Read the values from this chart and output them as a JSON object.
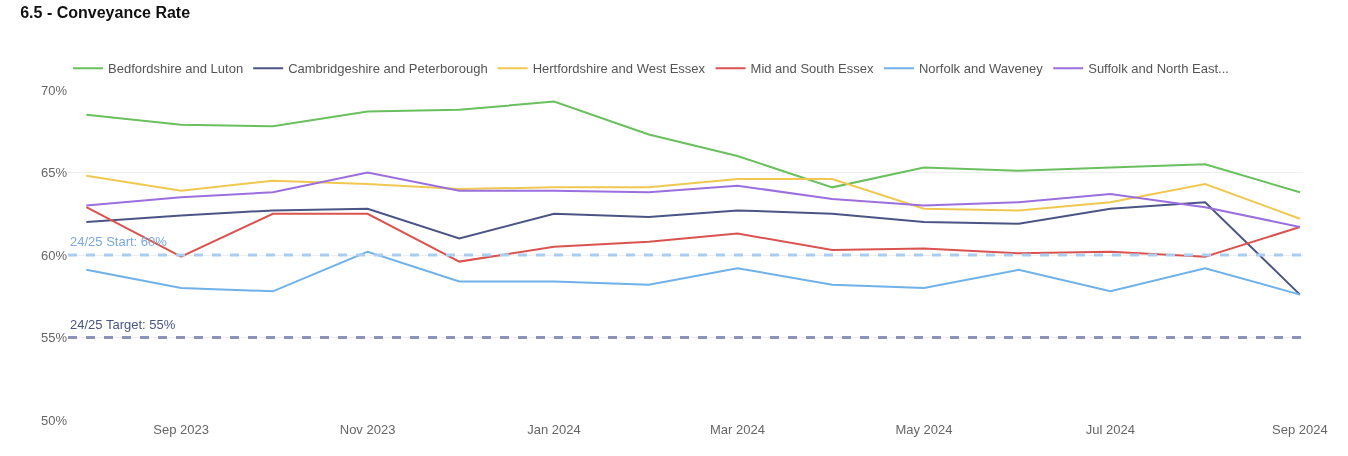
{
  "chart_data": {
    "type": "line",
    "title": "6.5 - Conveyance Rate",
    "x": [
      "2023-08",
      "2023-09",
      "2023-10",
      "2023-11",
      "2023-12",
      "2024-01",
      "2024-02",
      "2024-03",
      "2024-04",
      "2024-05",
      "2024-06",
      "2024-07",
      "2024-08",
      "2024-09"
    ],
    "series": [
      {
        "name": "Bedfordshire and Luton",
        "color": "#6abf5e",
        "values": [
          68.5,
          67.9,
          67.8,
          68.7,
          68.8,
          69.3,
          67.3,
          66.0,
          64.1,
          65.3,
          65.1,
          65.3,
          65.5,
          63.8
        ]
      },
      {
        "name": "Cambridgeshire and Peterborough",
        "color": "#4a5585",
        "values": [
          62.0,
          62.4,
          62.7,
          62.8,
          61.0,
          62.5,
          62.3,
          62.7,
          62.5,
          62.0,
          61.9,
          62.8,
          63.2,
          57.6
        ]
      },
      {
        "name": "Hertfordshire and West Essex",
        "color": "#f0c850",
        "values": [
          64.8,
          63.9,
          64.5,
          64.3,
          64.0,
          64.1,
          64.1,
          64.6,
          64.6,
          62.8,
          62.7,
          63.2,
          64.3,
          62.2
        ]
      },
      {
        "name": "Mid and South Essex",
        "color": "#d9534f",
        "values": [
          62.9,
          59.9,
          62.5,
          62.5,
          59.6,
          60.5,
          60.8,
          61.3,
          60.3,
          60.4,
          60.1,
          60.2,
          59.9,
          61.7
        ]
      },
      {
        "name": "Norfolk and Waveney",
        "color": "#6fb1e8",
        "values": [
          59.1,
          58.0,
          57.8,
          60.2,
          58.4,
          58.4,
          58.2,
          59.2,
          58.2,
          58.0,
          59.1,
          57.8,
          59.2,
          57.6
        ]
      },
      {
        "name": "Suffolk and North East...",
        "color": "#9b6fde",
        "values": [
          63.0,
          63.5,
          63.8,
          65.0,
          63.9,
          63.9,
          63.8,
          64.2,
          63.4,
          63.0,
          63.2,
          63.7,
          62.9,
          61.7
        ]
      }
    ],
    "xlim": [
      "2023-07-26",
      "2024-09-02"
    ],
    "xticks": [
      {
        "value": "2023-09-01",
        "label": "Sep 2023"
      },
      {
        "value": "2023-11-01",
        "label": "Nov 2023"
      },
      {
        "value": "2024-01-01",
        "label": "Jan 2024"
      },
      {
        "value": "2024-03-01",
        "label": "Mar 2024"
      },
      {
        "value": "2024-05-01",
        "label": "May 2024"
      },
      {
        "value": "2024-07-01",
        "label": "Jul 2024"
      },
      {
        "value": "2024-09-01",
        "label": "Sep 2024"
      }
    ],
    "ylim": [
      50,
      70
    ],
    "yticks": [
      {
        "value": 50,
        "label": "50%"
      },
      {
        "value": 55,
        "label": "55%"
      },
      {
        "value": 60,
        "label": "60%"
      },
      {
        "value": 65,
        "label": "65%"
      },
      {
        "value": 70,
        "label": "70%"
      }
    ],
    "ref_lines": [
      {
        "axis": "y",
        "value": 60,
        "label": "24/25 Start: 60%",
        "color": "#a9cdf0",
        "line_style": "dashed"
      },
      {
        "axis": "y",
        "value": 55,
        "label": "24/25 Target: 55%",
        "color": "#8c93b8",
        "line_style": "dashed"
      }
    ],
    "grid": "y",
    "legend": "top left",
    "marker": "none",
    "line_style": "solid"
  }
}
